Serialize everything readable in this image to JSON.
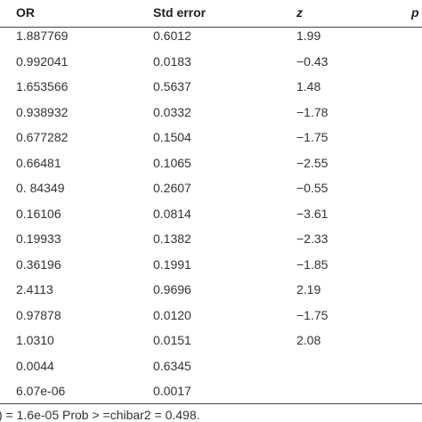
{
  "table": {
    "header": [
      "OR",
      "Std error",
      "z",
      "p"
    ],
    "rows": [
      [
        "1.887769",
        "0.6012",
        "1.99"
      ],
      [
        "0.992041",
        "0.0183",
        "−0.43"
      ],
      [
        "1.653566",
        "0.5637",
        "1.48"
      ],
      [
        "0.938932",
        "0.0332",
        "−1.78"
      ],
      [
        "0.677282",
        "0.1504",
        "−1.75"
      ],
      [
        "0.66481",
        "0.1065",
        "−2.55"
      ],
      [
        "0. 84349",
        "0.2607",
        "−0.55"
      ],
      [
        "0.16106",
        "0.0814",
        "−3.61"
      ],
      [
        "0.19933",
        "0.1382",
        "−2.33"
      ],
      [
        "0.36196",
        "0.1991",
        "−1.85"
      ],
      [
        "2.4113",
        "0.9696",
        "2.19"
      ],
      [
        "0.97878",
        "0.0120",
        "−1.75"
      ],
      [
        "1.0310",
        "0.0151",
        "2.08"
      ],
      [
        "0.0044",
        "0.6345"
      ],
      [
        "6.07e-06",
        "0.0017"
      ]
    ],
    "footer": ") = 1.6e-05 Prob > =chibar2 = 0.498."
  }
}
